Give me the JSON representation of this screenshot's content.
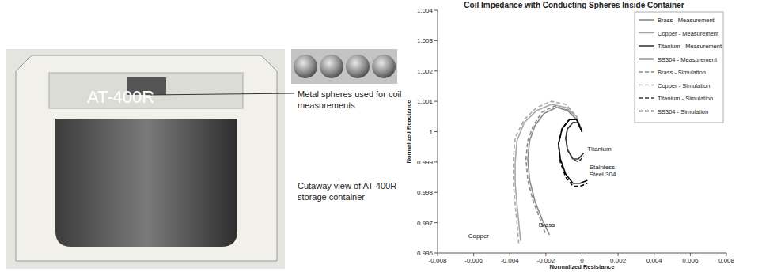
{
  "chart_data": {
    "type": "line",
    "title": "Coil Impedance with Conducting Spheres Inside Container",
    "x_label": "Normalized Resistance",
    "y_label": "Normalized Reactance",
    "xlim": [
      -0.008,
      0.008
    ],
    "xticks": [
      -0.008,
      -0.006,
      -0.004,
      -0.002,
      0,
      0.002,
      0.004,
      0.006,
      0.008
    ],
    "ylim": [
      0.996,
      1.004
    ],
    "yticks": [
      0.996,
      0.997,
      0.998,
      0.999,
      1,
      1.001,
      1.002,
      1.003,
      1.004
    ],
    "grid": false,
    "legend": "upper-right",
    "series": [
      {
        "name": "Brass - Measurement",
        "color": "#8a8a8a",
        "line_style": "solid",
        "x": [
          0,
          -0.0003,
          -0.0008,
          -0.0014,
          -0.0021,
          -0.0026,
          -0.0029,
          -0.003,
          -0.0029,
          -0.0026,
          -0.0022,
          -0.0018
        ],
        "values": [
          1,
          1.0004,
          1.0007,
          1.0008,
          1.0006,
          1.0002,
          0.9997,
          0.9991,
          0.9984,
          0.9977,
          0.9971,
          0.9966
        ]
      },
      {
        "name": "Copper - Measurement",
        "color": "#a8a8a8",
        "line_style": "solid",
        "x": [
          0,
          -0.0003,
          -0.0009,
          -0.0017,
          -0.0025,
          -0.0032,
          -0.0036,
          -0.0037,
          -0.0037,
          -0.0036,
          -0.0035,
          -0.0034
        ],
        "values": [
          1,
          1.0005,
          1.0008,
          1.0009,
          1.0007,
          1.0003,
          0.9997,
          0.999,
          0.9983,
          0.9976,
          0.997,
          0.9964
        ]
      },
      {
        "name": "Titanium - Measurement",
        "color": "#3a3a3a",
        "line_style": "solid",
        "x": [
          0,
          -0.0002,
          -0.0005,
          -0.0008,
          -0.0009,
          -0.0008,
          -0.0005,
          -0.0002,
          0.0001
        ],
        "values": [
          1,
          1.0003,
          1.0003,
          1.0001,
          0.9998,
          0.9994,
          0.9991,
          0.9991,
          0.9993
        ]
      },
      {
        "name": "SS304 - Measurement",
        "color": "#000000",
        "line_style": "solid",
        "x": [
          0,
          -0.0003,
          -0.0007,
          -0.0011,
          -0.0013,
          -0.0012,
          -0.0009,
          -0.0005,
          -0.0001,
          0.0003
        ],
        "values": [
          1,
          1.0004,
          1.0004,
          1.0001,
          0.9996,
          0.9991,
          0.9986,
          0.9983,
          0.9983,
          0.9984
        ]
      },
      {
        "name": "Brass - Simulation",
        "color": "#8a8a8a",
        "line_style": "dashed",
        "x": [
          0,
          -0.0003,
          -0.0008,
          -0.0015,
          -0.0022,
          -0.0027,
          -0.003,
          -0.0031,
          -0.003,
          -0.0027,
          -0.0023,
          -0.002
        ],
        "values": [
          1,
          1.0004,
          1.0007,
          1.00085,
          1.00065,
          1.0002,
          0.9997,
          0.9991,
          0.9984,
          0.9977,
          0.9971,
          0.9966
        ]
      },
      {
        "name": "Copper - Simulation",
        "color": "#a8a8a8",
        "line_style": "dashed",
        "x": [
          0,
          -0.0003,
          -0.0009,
          -0.0017,
          -0.0025,
          -0.0032,
          -0.0037,
          -0.0038,
          -0.0038,
          -0.0037,
          -0.0036,
          -0.0035
        ],
        "values": [
          1,
          1.0005,
          1.0009,
          1.001,
          1.0008,
          1.0004,
          0.9998,
          0.9991,
          0.9983,
          0.9976,
          0.997,
          0.9963
        ]
      },
      {
        "name": "Titanium - Simulation",
        "color": "#3a3a3a",
        "line_style": "dashed",
        "x": [
          0,
          -0.0002,
          -0.0005,
          -0.0008,
          -0.0009,
          -0.0008,
          -0.0005,
          -0.0002,
          0.0001
        ],
        "values": [
          1,
          1.0003,
          1.0003,
          1.0001,
          0.9998,
          0.9994,
          0.9991,
          0.999,
          0.9992
        ]
      },
      {
        "name": "SS304 - Simulation",
        "color": "#000000",
        "line_style": "dashed",
        "x": [
          0,
          -0.0003,
          -0.0007,
          -0.0011,
          -0.0013,
          -0.0012,
          -0.0009,
          -0.0005,
          -0.0001,
          0.0003
        ],
        "values": [
          1,
          1.0004,
          1.0004,
          1.0001,
          0.9996,
          0.999,
          0.9985,
          0.9982,
          0.9982,
          0.9983
        ]
      }
    ],
    "annotations": [
      {
        "lines": [
          "Titanium"
        ],
        "x": 0.0003,
        "y": 0.99935
      },
      {
        "lines": [
          "Stainless",
          "Steel 304"
        ],
        "x": 0.0004,
        "y": 0.99875
      },
      {
        "lines": [
          "Copper"
        ],
        "x": -0.0063,
        "y": 0.9965
      },
      {
        "lines": [
          "Brass"
        ],
        "x": -0.0024,
        "y": 0.99685
      }
    ]
  },
  "photos": {
    "container_label": "AT-400R",
    "spheres_caption": "Metal spheres used for coil measurements",
    "container_caption": "Cutaway view of AT-400R storage container"
  }
}
